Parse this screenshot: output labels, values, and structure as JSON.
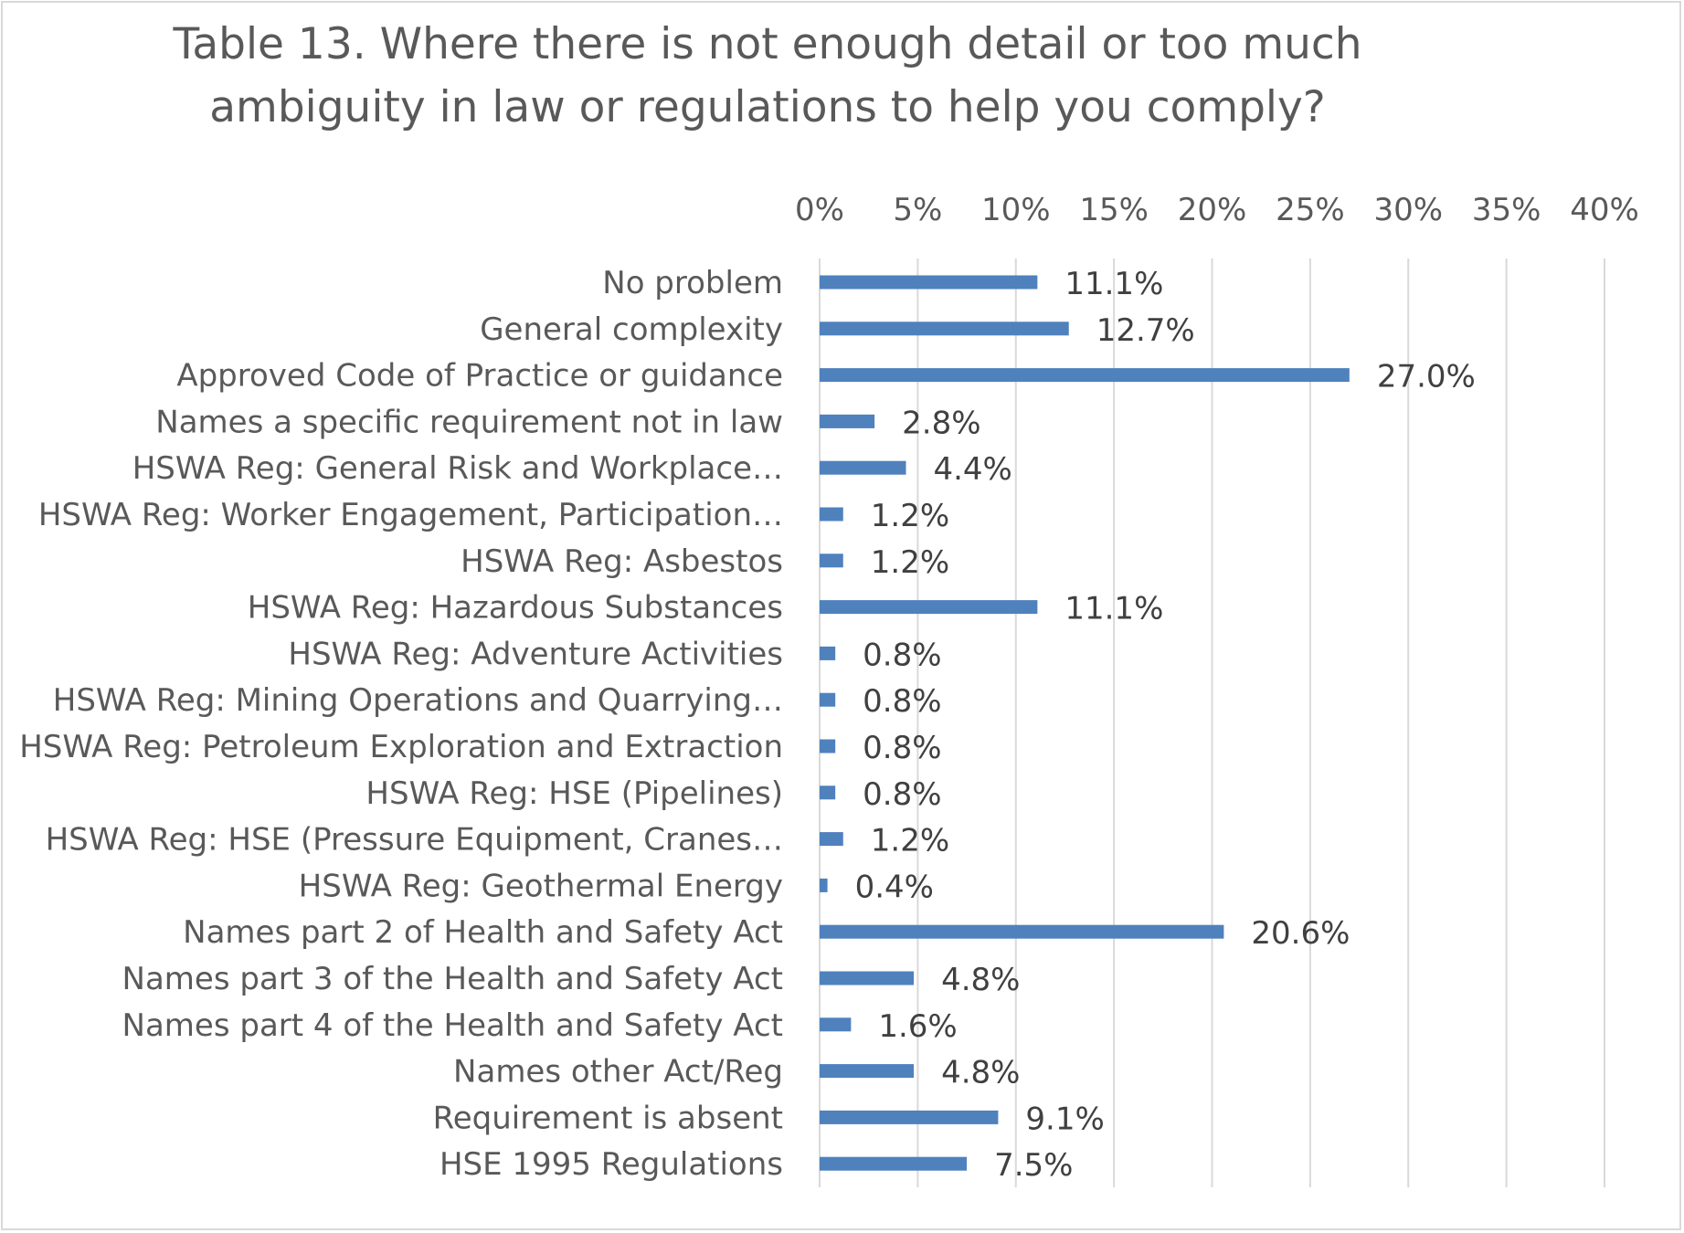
{
  "chart_data": {
    "type": "bar",
    "orientation": "horizontal",
    "title_lines": [
      "Table 13. Where there is not enough detail or too much",
      "ambiguity in law or regulations to help you comply?"
    ],
    "categories": [
      "No problem",
      "General complexity",
      "Approved Code of Practice or guidance",
      "Names a specific requirement not in law",
      "HSWA Reg: General Risk and Workplace…",
      "HSWA Reg: Worker Engagement, Participation…",
      "HSWA Reg: Asbestos",
      "HSWA Reg: Hazardous Substances",
      "HSWA Reg: Adventure Activities",
      "HSWA Reg: Mining Operations and Quarrying…",
      "HSWA Reg: Petroleum Exploration and Extraction",
      "HSWA Reg: HSE (Pipelines)",
      "HSWA Reg: HSE (Pressure Equipment, Cranes…",
      "HSWA Reg: Geothermal Energy",
      "Names part 2 of Health and Safety Act",
      "Names part 3 of the Health and Safety Act",
      "Names part 4 of the Health and Safety Act",
      "Names other Act/Reg",
      "Requirement is absent",
      "HSE 1995 Regulations"
    ],
    "values": [
      11.1,
      12.7,
      27.0,
      2.8,
      4.4,
      1.2,
      1.2,
      11.1,
      0.8,
      0.8,
      0.8,
      0.8,
      1.2,
      0.4,
      20.6,
      4.8,
      1.6,
      4.8,
      9.1,
      7.5
    ],
    "value_labels": [
      "11.1%",
      "12.7%",
      "27.0%",
      "2.8%",
      "4.4%",
      "1.2%",
      "1.2%",
      "11.1%",
      "0.8%",
      "0.8%",
      "0.8%",
      "0.8%",
      "1.2%",
      "0.4%",
      "20.6%",
      "4.8%",
      "1.6%",
      "4.8%",
      "9.1%",
      "7.5%"
    ],
    "x_ticks": [
      0,
      5,
      10,
      15,
      20,
      25,
      30,
      35,
      40
    ],
    "x_tick_labels": [
      "0%",
      "5%",
      "10%",
      "15%",
      "20%",
      "25%",
      "30%",
      "35%",
      "40%"
    ],
    "xlim": [
      0,
      40
    ],
    "xlabel": "",
    "ylabel": "",
    "grid": true,
    "axis_position": "top",
    "bar_color": "#4f81bd",
    "grid_color": "#d9d9d9",
    "text_color": "#595959"
  }
}
